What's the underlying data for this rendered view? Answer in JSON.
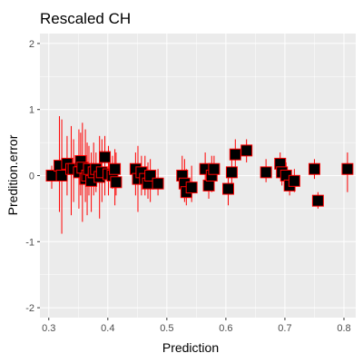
{
  "chart_data": {
    "type": "scatter",
    "title": "Rescaled CH",
    "xlabel": "Prediction",
    "ylabel": "Predition.error",
    "xlim": [
      0.285,
      0.82
    ],
    "ylim": [
      -2.15,
      2.15
    ],
    "x_ticks": [
      0.3,
      0.4,
      0.5,
      0.6,
      0.7,
      0.8
    ],
    "x_tick_labels": [
      "0.3",
      "0.4",
      "0.5",
      "0.6",
      "0.7",
      "0.8"
    ],
    "y_ticks": [
      -2,
      -1,
      0,
      1,
      2
    ],
    "y_tick_labels": [
      "-2",
      "-1",
      "0",
      "1",
      "2"
    ],
    "grid": true,
    "panel_background": "#ebebeb",
    "grid_color": "#ffffff",
    "point_fill": "#000000",
    "point_border": "#ff0000",
    "errorbar_color": "#ff0000",
    "points": [
      {
        "x": 0.305,
        "y": 0.0,
        "lo": -0.2,
        "hi": 0.15
      },
      {
        "x": 0.318,
        "y": 0.15,
        "lo": -0.55,
        "hi": 0.9
      },
      {
        "x": 0.322,
        "y": 0.0,
        "lo": -0.88,
        "hi": 0.85
      },
      {
        "x": 0.331,
        "y": 0.18,
        "lo": -0.3,
        "hi": 0.6
      },
      {
        "x": 0.338,
        "y": 0.1,
        "lo": -0.6,
        "hi": 0.75
      },
      {
        "x": 0.342,
        "y": 0.1,
        "lo": -0.4,
        "hi": 0.55
      },
      {
        "x": 0.351,
        "y": 0.05,
        "lo": -0.5,
        "hi": 0.7
      },
      {
        "x": 0.354,
        "y": 0.22,
        "lo": -0.3,
        "hi": 0.65
      },
      {
        "x": 0.357,
        "y": 0.12,
        "lo": -0.7,
        "hi": 0.8
      },
      {
        "x": 0.362,
        "y": -0.05,
        "lo": -0.4,
        "hi": 0.7
      },
      {
        "x": 0.365,
        "y": 0.0,
        "lo": -0.6,
        "hi": 0.5
      },
      {
        "x": 0.368,
        "y": 0.1,
        "lo": -0.3,
        "hi": 0.45
      },
      {
        "x": 0.372,
        "y": -0.08,
        "lo": -0.55,
        "hi": 0.35
      },
      {
        "x": 0.376,
        "y": 0.05,
        "lo": -0.3,
        "hi": 0.5
      },
      {
        "x": 0.38,
        "y": 0.1,
        "lo": -0.25,
        "hi": 0.35
      },
      {
        "x": 0.386,
        "y": -0.02,
        "lo": -0.65,
        "hi": 0.6
      },
      {
        "x": 0.39,
        "y": 0.05,
        "lo": -0.4,
        "hi": 0.55
      },
      {
        "x": 0.395,
        "y": 0.28,
        "lo": -0.3,
        "hi": 0.6
      },
      {
        "x": 0.401,
        "y": 0.02,
        "lo": -0.3,
        "hi": 0.45
      },
      {
        "x": 0.408,
        "y": 0.0,
        "lo": -0.2,
        "hi": 0.3
      },
      {
        "x": 0.412,
        "y": 0.1,
        "lo": -0.45,
        "hi": 0.4
      },
      {
        "x": 0.414,
        "y": -0.1,
        "lo": -0.3,
        "hi": 0.35
      },
      {
        "x": 0.447,
        "y": 0.1,
        "lo": -0.3,
        "hi": 0.35
      },
      {
        "x": 0.451,
        "y": -0.05,
        "lo": -0.55,
        "hi": 0.45
      },
      {
        "x": 0.457,
        "y": 0.05,
        "lo": -0.3,
        "hi": 0.3
      },
      {
        "x": 0.463,
        "y": -0.05,
        "lo": -0.3,
        "hi": 0.3
      },
      {
        "x": 0.468,
        "y": -0.12,
        "lo": -0.35,
        "hi": 0.2
      },
      {
        "x": 0.472,
        "y": 0.0,
        "lo": -0.4,
        "hi": 0.25
      },
      {
        "x": 0.485,
        "y": -0.12,
        "lo": -0.3,
        "hi": 0.1
      },
      {
        "x": 0.526,
        "y": 0.0,
        "lo": -0.3,
        "hi": 0.3
      },
      {
        "x": 0.53,
        "y": -0.12,
        "lo": -0.4,
        "hi": 0.25
      },
      {
        "x": 0.533,
        "y": -0.25,
        "lo": -0.45,
        "hi": 0.1
      },
      {
        "x": 0.542,
        "y": -0.18,
        "lo": -0.4,
        "hi": 0.15
      },
      {
        "x": 0.565,
        "y": 0.1,
        "lo": -0.2,
        "hi": 0.35
      },
      {
        "x": 0.571,
        "y": -0.15,
        "lo": -0.35,
        "hi": 0.1
      },
      {
        "x": 0.576,
        "y": 0.0,
        "lo": -0.25,
        "hi": 0.3
      },
      {
        "x": 0.58,
        "y": 0.1,
        "lo": -0.1,
        "hi": 0.3
      },
      {
        "x": 0.604,
        "y": -0.2,
        "lo": -0.45,
        "hi": 0.05
      },
      {
        "x": 0.61,
        "y": 0.05,
        "lo": -0.25,
        "hi": 0.35
      },
      {
        "x": 0.616,
        "y": 0.32,
        "lo": 0.1,
        "hi": 0.55
      },
      {
        "x": 0.635,
        "y": 0.38,
        "lo": 0.2,
        "hi": 0.55
      },
      {
        "x": 0.668,
        "y": 0.05,
        "lo": -0.1,
        "hi": 0.25
      },
      {
        "x": 0.692,
        "y": 0.18,
        "lo": 0.0,
        "hi": 0.35
      },
      {
        "x": 0.695,
        "y": 0.05,
        "lo": -0.15,
        "hi": 0.25
      },
      {
        "x": 0.702,
        "y": 0.0,
        "lo": -0.2,
        "hi": 0.2
      },
      {
        "x": 0.708,
        "y": -0.15,
        "lo": -0.3,
        "hi": 0.05
      },
      {
        "x": 0.716,
        "y": -0.08,
        "lo": -0.25,
        "hi": 0.1
      },
      {
        "x": 0.75,
        "y": 0.1,
        "lo": -0.05,
        "hi": 0.25
      },
      {
        "x": 0.756,
        "y": -0.38,
        "lo": -0.5,
        "hi": -0.25
      },
      {
        "x": 0.806,
        "y": 0.1,
        "lo": -0.25,
        "hi": 0.35
      }
    ]
  }
}
